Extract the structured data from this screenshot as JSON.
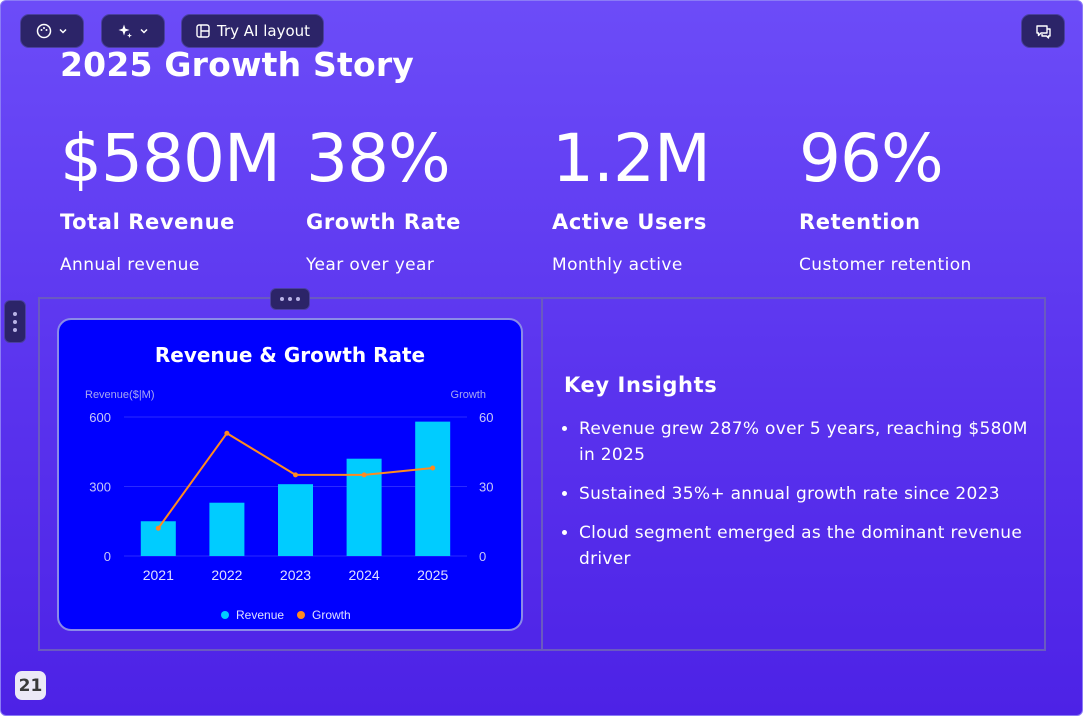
{
  "toolbar": {
    "try_ai_label": "Try AI layout"
  },
  "slide": {
    "title": "2025 Growth Story",
    "page_number": "21",
    "stats": [
      {
        "value": "$580M",
        "label": "Total Revenue",
        "sub": "Annual revenue"
      },
      {
        "value": "38%",
        "label": "Growth Rate",
        "sub": "Year over year"
      },
      {
        "value": "1.2M",
        "label": "Active Users",
        "sub": "Monthly active"
      },
      {
        "value": "96%",
        "label": "Retention",
        "sub": "Customer retention"
      }
    ],
    "insights": {
      "heading": "Key Insights",
      "items": [
        "Revenue grew 287% over 5 years, reaching $580M in 2025",
        "Sustained 35%+ annual growth rate since 2023",
        "Cloud segment emerged as the dominant revenue driver"
      ]
    }
  },
  "chart_data": {
    "type": "bar",
    "title": "Revenue & Growth Rate",
    "ylabel": "Revenue($|M)",
    "y2label": "Growth",
    "categories": [
      "2021",
      "2022",
      "2023",
      "2024",
      "2025"
    ],
    "ylim": [
      0,
      600
    ],
    "y2lim": [
      0,
      60
    ],
    "yticks": [
      "0",
      "300",
      "600"
    ],
    "y2ticks": [
      "0",
      "30",
      "60"
    ],
    "series": [
      {
        "name": "Revenue",
        "type": "bar",
        "axis": "left",
        "color": "#00ccff",
        "values": [
          150,
          230,
          310,
          420,
          580
        ]
      },
      {
        "name": "Growth",
        "type": "line",
        "axis": "right",
        "color": "#ff8a1f",
        "values": [
          12,
          53,
          35,
          35,
          38
        ]
      }
    ],
    "legend": "bottom-center",
    "grid": true
  },
  "colors": {
    "background_top": "#6c4cf8",
    "background_bottom": "#4d22e6",
    "chart_background": "#0000ff",
    "toolbar_button": "#2c2468"
  },
  "icons": {
    "theme": "palette-icon",
    "ai": "sparkles-icon",
    "layout": "layout-icon",
    "comments": "comment-icon"
  }
}
